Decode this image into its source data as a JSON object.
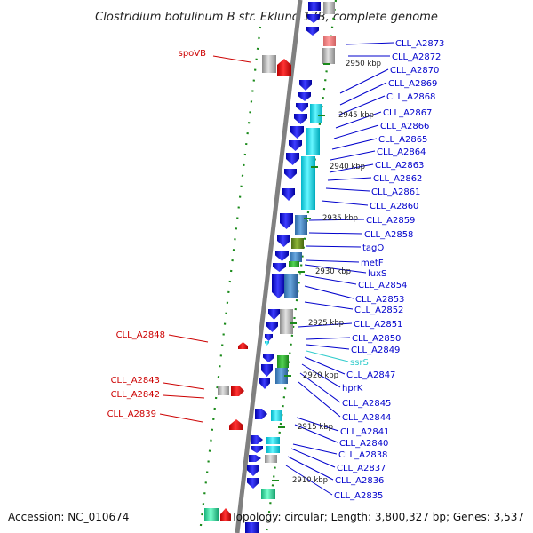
{
  "title": "Clostridium botulinum B str. Eklund 17B, complete genome",
  "footer": {
    "accession": "Accession: NC_010674",
    "summary": "Topology: circular; Length: 3,800,327 bp; Genes: 3,537"
  },
  "colors": {
    "backbone": "#808080",
    "ruler": "#1a8a1a",
    "forward_label": "#0000cc",
    "reverse_label": "#cc0000",
    "rna_label": "#33cccc"
  },
  "ticks": [
    "2950 kbp",
    "2945 kbp",
    "2940 kbp",
    "2935 kbp",
    "2930 kbp",
    "2925 kbp",
    "2920 kbp",
    "2915 kbp",
    "2910 kbp"
  ],
  "right_labels": [
    {
      "text": "CLL_A2873",
      "color": "#0000cc"
    },
    {
      "text": "CLL_A2872",
      "color": "#0000cc"
    },
    {
      "text": "CLL_A2870",
      "color": "#0000cc"
    },
    {
      "text": "CLL_A2869",
      "color": "#0000cc"
    },
    {
      "text": "CLL_A2868",
      "color": "#0000cc"
    },
    {
      "text": "CLL_A2867",
      "color": "#0000cc"
    },
    {
      "text": "CLL_A2866",
      "color": "#0000cc"
    },
    {
      "text": "CLL_A2865",
      "color": "#0000cc"
    },
    {
      "text": "CLL_A2864",
      "color": "#0000cc"
    },
    {
      "text": "CLL_A2863",
      "color": "#0000cc"
    },
    {
      "text": "CLL_A2862",
      "color": "#0000cc"
    },
    {
      "text": "CLL_A2861",
      "color": "#0000cc"
    },
    {
      "text": "CLL_A2860",
      "color": "#0000cc"
    },
    {
      "text": "CLL_A2859",
      "color": "#0000cc"
    },
    {
      "text": "CLL_A2858",
      "color": "#0000cc"
    },
    {
      "text": "tagO",
      "color": "#0000cc"
    },
    {
      "text": "metF",
      "color": "#0000cc"
    },
    {
      "text": "luxS",
      "color": "#0000cc"
    },
    {
      "text": "CLL_A2854",
      "color": "#0000cc"
    },
    {
      "text": "CLL_A2853",
      "color": "#0000cc"
    },
    {
      "text": "CLL_A2852",
      "color": "#0000cc"
    },
    {
      "text": "CLL_A2851",
      "color": "#0000cc"
    },
    {
      "text": "CLL_A2850",
      "color": "#0000cc"
    },
    {
      "text": "CLL_A2849",
      "color": "#0000cc"
    },
    {
      "text": "ssrS",
      "color": "#33cccc"
    },
    {
      "text": "CLL_A2847",
      "color": "#0000cc"
    },
    {
      "text": "hprK",
      "color": "#0000cc"
    },
    {
      "text": "CLL_A2845",
      "color": "#0000cc"
    },
    {
      "text": "CLL_A2844",
      "color": "#0000cc"
    },
    {
      "text": "CLL_A2841",
      "color": "#0000cc"
    },
    {
      "text": "CLL_A2840",
      "color": "#0000cc"
    },
    {
      "text": "CLL_A2838",
      "color": "#0000cc"
    },
    {
      "text": "CLL_A2837",
      "color": "#0000cc"
    },
    {
      "text": "CLL_A2836",
      "color": "#0000cc"
    },
    {
      "text": "CLL_A2835",
      "color": "#0000cc"
    }
  ],
  "left_labels": [
    {
      "text": "spoVB",
      "color": "#cc0000"
    },
    {
      "text": "CLL_A2848",
      "color": "#cc0000"
    },
    {
      "text": "CLL_A2843",
      "color": "#cc0000"
    },
    {
      "text": "CLL_A2842",
      "color": "#cc0000"
    },
    {
      "text": "CLL_A2839",
      "color": "#cc0000"
    }
  ]
}
